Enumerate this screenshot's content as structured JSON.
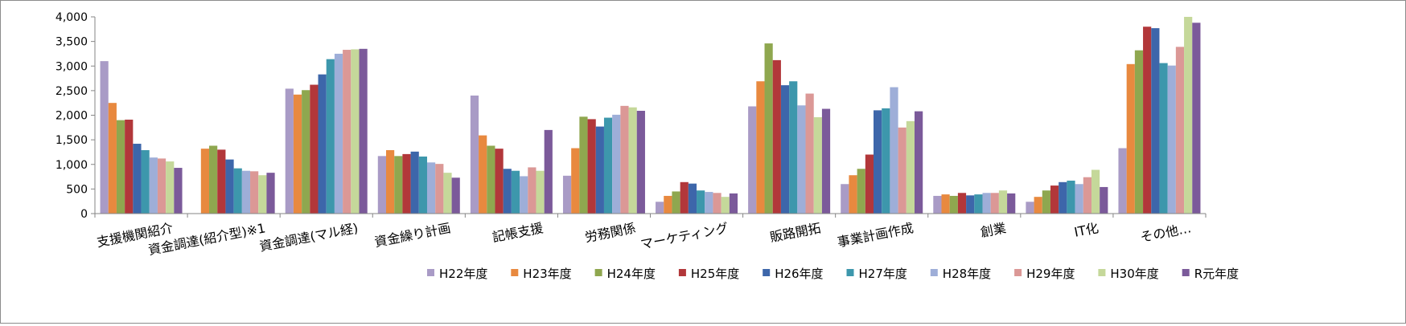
{
  "chart_data": {
    "type": "bar",
    "title": "",
    "xlabel": "",
    "ylabel": "",
    "ylim": [
      0,
      4000
    ],
    "yticks": [
      0,
      500,
      1000,
      1500,
      2000,
      2500,
      3000,
      3500,
      4000
    ],
    "ytick_labels": [
      "0",
      "500",
      "1,000",
      "1,500",
      "2,000",
      "2,500",
      "3,000",
      "3,500",
      "4,000"
    ],
    "grid": false,
    "legend_position": "bottom-right",
    "categories": [
      "支援機関紹介",
      "資金調達(紹介型)※1",
      "資金調達(マル経)",
      "資金繰り計画",
      "記帳支援",
      "労務関係",
      "マーケティング",
      "販路開拓",
      "事業計画作成",
      "創業",
      "IT化",
      "その他…"
    ],
    "series": [
      {
        "name": "H22年度",
        "color": "#a99bc6",
        "values": [
          3100,
          0,
          2540,
          1170,
          2400,
          770,
          240,
          2180,
          600,
          360,
          240,
          1330
        ]
      },
      {
        "name": "H23年度",
        "color": "#e8893f",
        "values": [
          2250,
          1320,
          2420,
          1290,
          1590,
          1330,
          360,
          2690,
          780,
          390,
          340,
          3040
        ]
      },
      {
        "name": "H24年度",
        "color": "#8fa74f",
        "values": [
          1900,
          1380,
          2510,
          1170,
          1380,
          1970,
          450,
          3460,
          910,
          360,
          470,
          3320
        ]
      },
      {
        "name": "H25年度",
        "color": "#b2373a",
        "values": [
          1910,
          1300,
          2620,
          1210,
          1320,
          1920,
          640,
          3120,
          1200,
          420,
          570,
          3800
        ]
      },
      {
        "name": "H26年度",
        "color": "#3d66aa",
        "values": [
          1420,
          1100,
          2830,
          1260,
          910,
          1770,
          610,
          2610,
          2100,
          370,
          640,
          3770
        ]
      },
      {
        "name": "H27年度",
        "color": "#3d97ac",
        "values": [
          1290,
          920,
          3140,
          1160,
          870,
          1950,
          470,
          2690,
          2140,
          390,
          670,
          3060
        ]
      },
      {
        "name": "H28年度",
        "color": "#9eaed8",
        "values": [
          1140,
          870,
          3250,
          1040,
          760,
          2010,
          440,
          2200,
          2570,
          420,
          600,
          3010
        ]
      },
      {
        "name": "H29年度",
        "color": "#db9896",
        "values": [
          1120,
          860,
          3330,
          1010,
          940,
          2190,
          420,
          2440,
          1750,
          420,
          740,
          3390
        ]
      },
      {
        "name": "H30年度",
        "color": "#c5d89a",
        "values": [
          1060,
          780,
          3340,
          830,
          870,
          2160,
          340,
          1960,
          1880,
          470,
          890,
          4000
        ]
      },
      {
        "name": "R元年度",
        "color": "#7b5a9a",
        "values": [
          930,
          830,
          3350,
          730,
          1700,
          2090,
          410,
          2130,
          2080,
          410,
          540,
          3880
        ]
      }
    ]
  }
}
